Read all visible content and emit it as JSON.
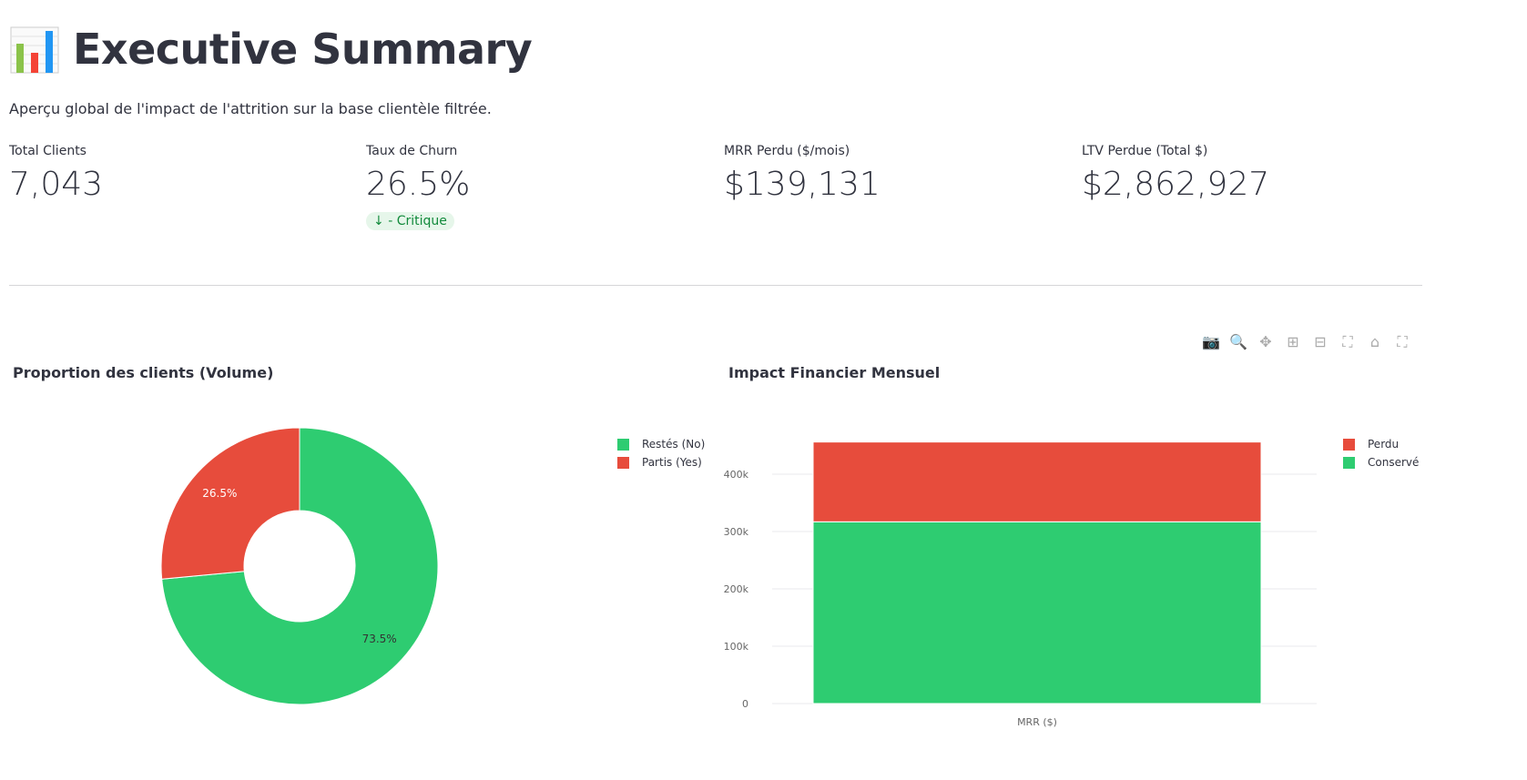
{
  "header": {
    "icon": "bar-chart-icon",
    "title": "Executive Summary",
    "subtitle": "Aperçu global de l'impact de l'attrition sur la base clientèle filtrée."
  },
  "metrics": [
    {
      "label": "Total Clients",
      "value": "7,043"
    },
    {
      "label": "Taux de Churn",
      "value": "26.5%",
      "delta": "- Critique"
    },
    {
      "label": "MRR Perdu ($/mois)",
      "value": "$139,131"
    },
    {
      "label": "LTV Perdue (Total $)",
      "value": "$2,862,927"
    }
  ],
  "toolbar": [
    "camera-icon",
    "zoom-icon",
    "pan-icon",
    "zoom-in-icon",
    "zoom-out-icon",
    "autoscale-icon",
    "reset-axes-icon",
    "fullscreen-icon"
  ],
  "chart_data": [
    {
      "type": "pie",
      "hole": 0.4,
      "title": "Proportion des clients (Volume)",
      "labels": [
        "Restés (No)",
        "Partis (Yes)"
      ],
      "values": [
        73.5,
        26.5
      ],
      "text": [
        "73.5%",
        "26.5%"
      ],
      "colors": [
        "#2ecc71",
        "#e74c3c"
      ],
      "legend": "top-right"
    },
    {
      "type": "bar",
      "stacked": true,
      "title": "Impact Financier Mensuel",
      "categories": [
        "MRR ($)"
      ],
      "series": [
        {
          "name": "Conservé",
          "values": [
            316985
          ],
          "color": "#2ecc71"
        },
        {
          "name": "Perdu",
          "values": [
            139131
          ],
          "color": "#e74c3c"
        }
      ],
      "legend_order": [
        "Perdu",
        "Conservé"
      ],
      "yticks": [
        "0",
        "100k",
        "200k",
        "300k",
        "400k"
      ],
      "ylim": [
        0,
        480000
      ],
      "grid": true,
      "legend": "top-right"
    }
  ]
}
